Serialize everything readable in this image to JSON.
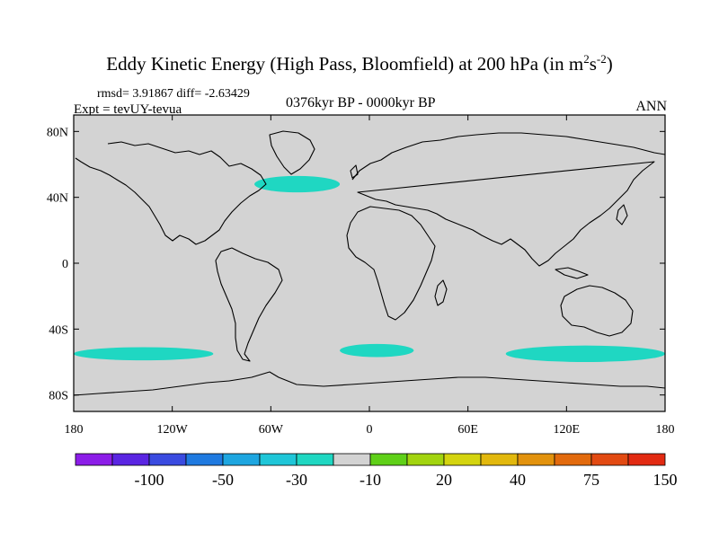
{
  "header": {
    "title_main": "Eddy Kinetic Energy (High Pass, Bloomfield) at 200 hPa (in m",
    "title_sup1": "2",
    "title_mid": "s",
    "title_sup2": "-2",
    "title_end": ")",
    "stats": "rmsd= 3.91867 diff= -2.63429",
    "experiment": "Expt = tevUY-tevua",
    "period": "0376kyr BP - 0000kyr BP",
    "season": "ANN"
  },
  "map": {
    "lat_labels": [
      "80N",
      "40N",
      "0",
      "40S",
      "80S"
    ],
    "lat_values": [
      80,
      40,
      0,
      -40,
      -80
    ],
    "lon_labels": [
      "180",
      "120W",
      "60W",
      "0",
      "60E",
      "120E",
      "180"
    ],
    "lon_values": [
      -180,
      -120,
      -60,
      0,
      60,
      120,
      180
    ],
    "lat_range": [
      -90,
      90
    ],
    "lon_range": [
      -180,
      180
    ],
    "background_color": "#d3d3d3",
    "anomaly_color": "#1fd7c2",
    "anomalies": [
      {
        "name": "north-atlantic",
        "lon_range": [
          -70,
          -18
        ],
        "lat_center": 48,
        "lat_half": 5
      },
      {
        "name": "south-pacific",
        "lon_range": [
          -180,
          -95
        ],
        "lat_center": -55,
        "lat_half": 4
      },
      {
        "name": "south-atlantic",
        "lon_range": [
          -18,
          27
        ],
        "lat_center": -53,
        "lat_half": 4
      },
      {
        "name": "south-indian",
        "lon_range": [
          83,
          180
        ],
        "lat_center": -55,
        "lat_half": 5
      }
    ]
  },
  "colorbar": {
    "colors": [
      "#8c1de8",
      "#5a25e2",
      "#3a4be0",
      "#1f7ae0",
      "#1ea6e0",
      "#1fc6d8",
      "#1fd7c2",
      "#d3d3d3",
      "#5fd018",
      "#a2d40f",
      "#d4d40f",
      "#e2b80d",
      "#e2920d",
      "#e26a0d",
      "#e24a12",
      "#e22a12"
    ],
    "labels": [
      "-100",
      "-50",
      "-30",
      "-10",
      "20",
      "40",
      "75",
      "150"
    ]
  }
}
